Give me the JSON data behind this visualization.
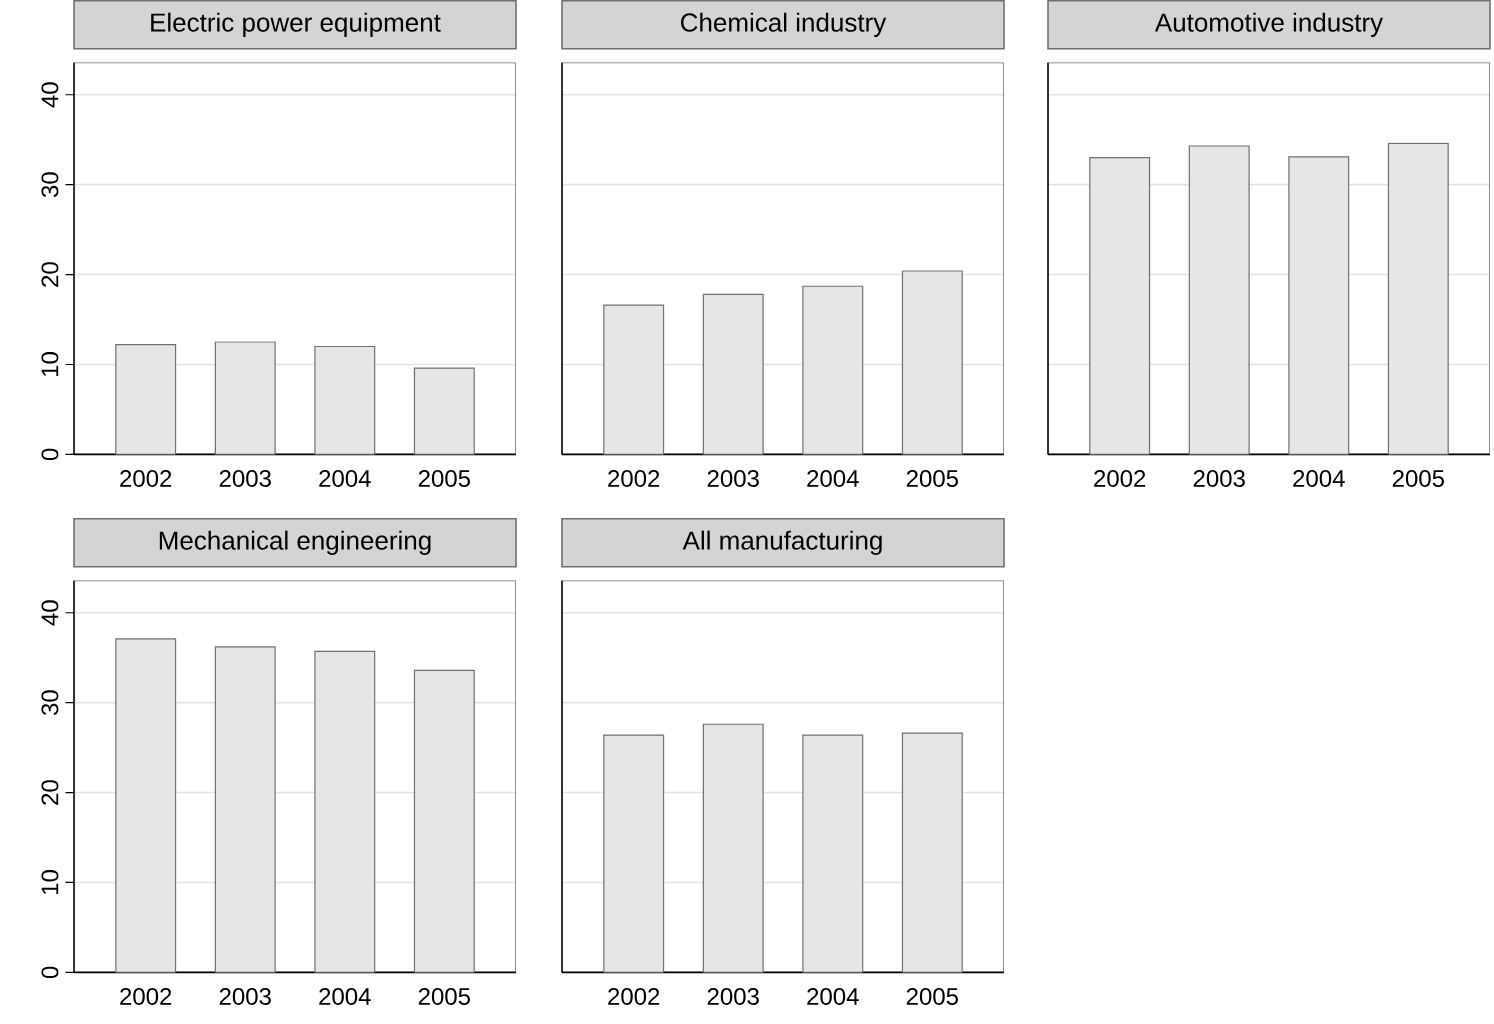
{
  "chart_data": [
    {
      "type": "bar",
      "title": "Electric power equipment",
      "categories": [
        "2002",
        "2003",
        "2004",
        "2005"
      ],
      "values": [
        12.2,
        12.5,
        12.0,
        9.6
      ],
      "color": "#e6e6e6",
      "ylim": [
        0,
        43.6
      ],
      "yticks": [
        0,
        10,
        20,
        30,
        40
      ],
      "grid": "y"
    },
    {
      "type": "bar",
      "title": "Chemical industry",
      "categories": [
        "2002",
        "2003",
        "2004",
        "2005"
      ],
      "values": [
        16.6,
        17.8,
        18.7,
        20.4
      ],
      "color": "#e6e6e6",
      "ylim": [
        0,
        43.6
      ],
      "yticks": [
        0,
        10,
        20,
        30,
        40
      ],
      "grid": "y",
      "tick_labels": "x"
    },
    {
      "type": "bar",
      "title": "Automotive industry",
      "categories": [
        "2002",
        "2003",
        "2004",
        "2005"
      ],
      "values": [
        33.0,
        34.3,
        33.1,
        34.6
      ],
      "color": "#e6e6e6",
      "ylim": [
        0,
        43.6
      ],
      "yticks": [
        0,
        10,
        20,
        30,
        40
      ],
      "grid": "y",
      "tick_labels": "x"
    },
    {
      "type": "bar",
      "title": "Mechanical engineering",
      "categories": [
        "2002",
        "2003",
        "2004",
        "2005"
      ],
      "values": [
        37.1,
        36.2,
        35.7,
        33.6
      ],
      "color": "#e6e6e6",
      "ylim": [
        0,
        43.6
      ],
      "yticks": [
        0,
        10,
        20,
        30,
        40
      ],
      "grid": "y"
    },
    {
      "type": "bar",
      "title": "All manufacturing",
      "categories": [
        "2002",
        "2003",
        "2004",
        "2005"
      ],
      "values": [
        26.4,
        27.6,
        26.4,
        26.6
      ],
      "color": "#e6e6e6",
      "ylim": [
        0,
        43.6
      ],
      "yticks": [
        0,
        10,
        20,
        30,
        40
      ],
      "grid": "y",
      "tick_labels": "x"
    }
  ]
}
